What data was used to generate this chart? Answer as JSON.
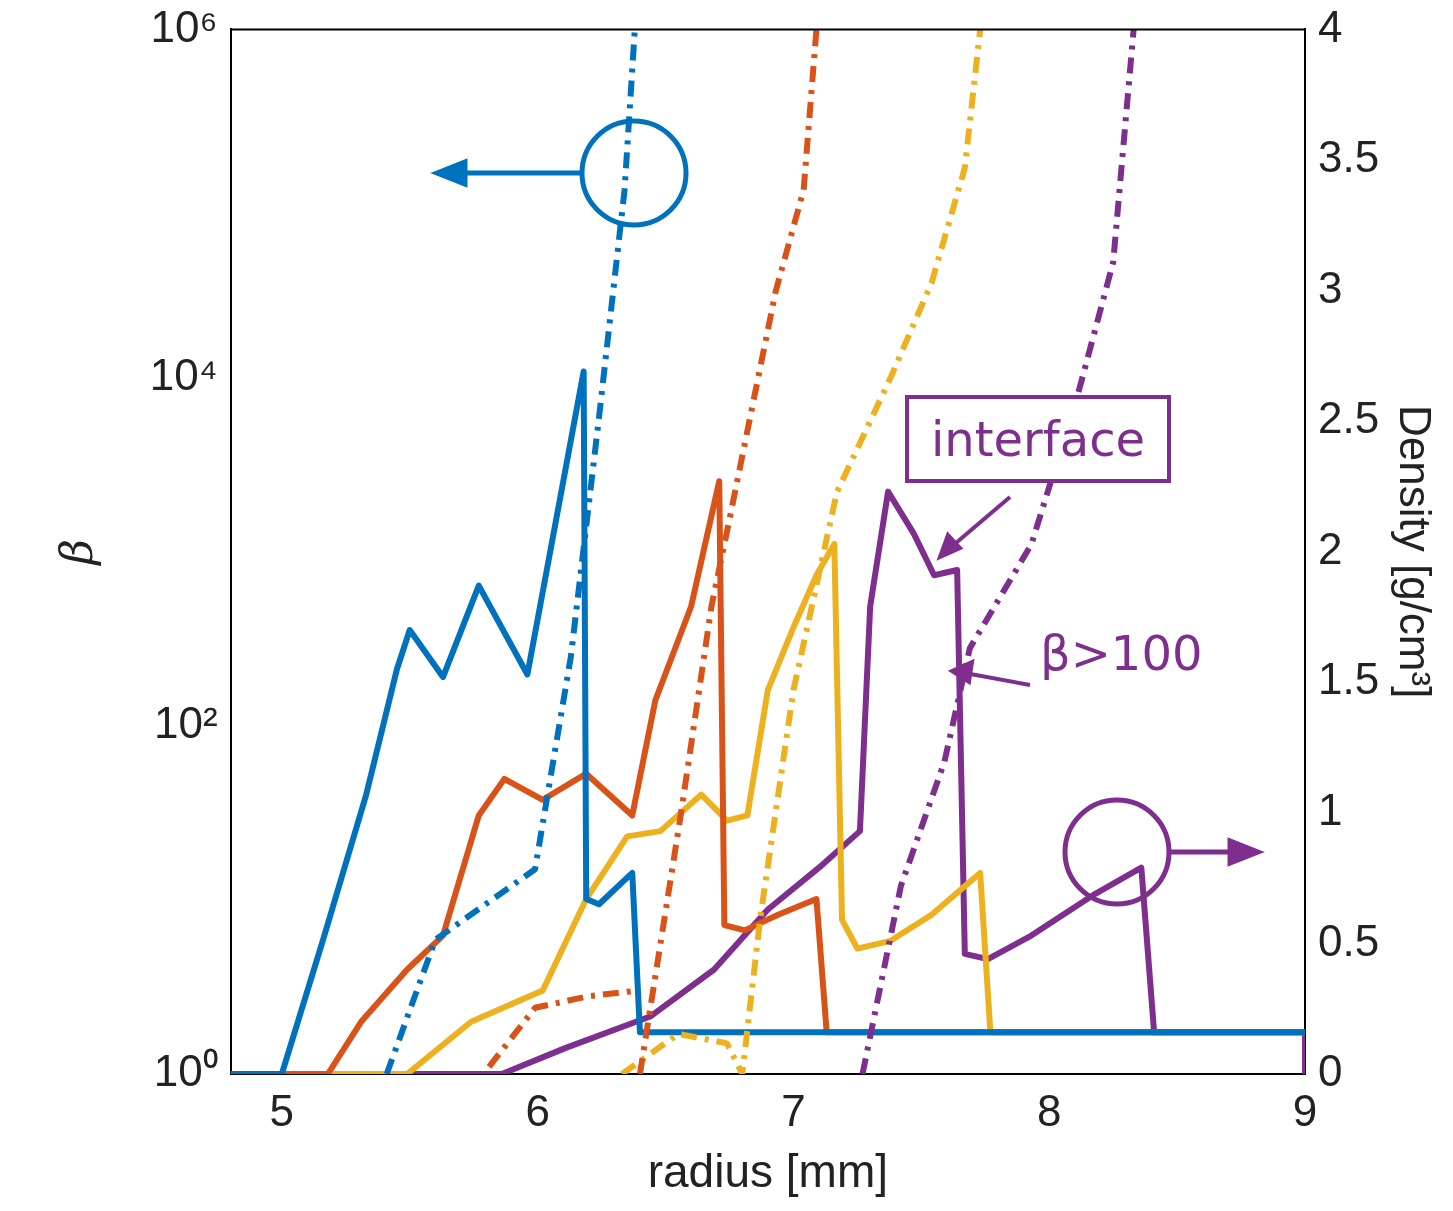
{
  "chart_data": {
    "type": "line",
    "xlabel": "radius [mm]",
    "ylabel": "β",
    "y2label": "Density [g/cm³]",
    "log": "y",
    "grid": false,
    "legend": false,
    "xlim": [
      4.8,
      9
    ],
    "xticks": [
      5,
      6,
      7,
      8,
      9
    ],
    "ylim": [
      1,
      1000000
    ],
    "yticks": [
      {
        "value": 1,
        "label": "10⁰"
      },
      {
        "value": 100,
        "label": "10²"
      },
      {
        "value": 10000,
        "label": "10⁴"
      },
      {
        "value": 1000000,
        "label": "10⁶"
      }
    ],
    "y2lim": [
      0,
      4
    ],
    "y2ticks": [
      0,
      0.5,
      1,
      1.5,
      2,
      2.5,
      3,
      3.5,
      4
    ],
    "annotations": [
      "interface",
      "β>100"
    ],
    "series": [
      {
        "color": "#0072bd",
        "axis": "y",
        "line_style": "dashed",
        "x": [
          5.41,
          5.6,
          5.99,
          6.13,
          6.24,
          6.34,
          6.38
        ],
        "values": [
          1,
          5.9,
          15,
          250,
          5900,
          120000,
          1000000
        ]
      },
      {
        "color": "#d95319",
        "axis": "y",
        "line_style": "dashed",
        "x": [
          5.81,
          5.99,
          6.2,
          6.38,
          6.39,
          6.4,
          6.56,
          6.68,
          6.74,
          6.93,
          7.04,
          7.09
        ],
        "values": [
          1.1,
          2.4,
          2.8,
          3.0,
          null,
          1,
          31,
          490,
          1300,
          31000,
          120000,
          1000000
        ]
      },
      {
        "color": "#edb120",
        "axis": "y",
        "line_style": "dashed",
        "x": [
          6.33,
          6.55,
          6.74,
          6.8,
          6.87,
          7.0,
          7.17,
          7.38,
          7.54,
          7.67,
          7.73
        ],
        "values": [
          1,
          1.7,
          1.5,
          1.0,
          7.8,
          160,
          2200,
          10000,
          35000,
          160000,
          1000000
        ]
      },
      {
        "color": "#7e2f8e",
        "axis": "y",
        "line_style": "dashed",
        "x": [
          7.27,
          7.42,
          7.59,
          7.69,
          7.93,
          8.11,
          8.25,
          8.33
        ],
        "values": [
          1,
          12,
          62,
          280,
          1100,
          7800,
          46000,
          1000000
        ]
      },
      {
        "color": "#0072bd",
        "axis": "y2",
        "line_style": "solid",
        "x": [
          4.8,
          5.0,
          5.16,
          5.33,
          5.45,
          5.5,
          5.63,
          5.77,
          5.96,
          6.07,
          6.18,
          6.19,
          6.24,
          6.37,
          6.4,
          9
        ],
        "values": [
          0,
          0,
          0.51,
          1.07,
          1.55,
          1.7,
          1.52,
          1.87,
          1.53,
          2.11,
          2.69,
          0.67,
          0.65,
          0.77,
          0.16,
          0.16
        ]
      },
      {
        "color": "#d95319",
        "axis": "y2",
        "line_style": "solid",
        "x": [
          4.8,
          5.18,
          5.31,
          5.49,
          5.63,
          5.77,
          5.87,
          6.02,
          6.19,
          6.37,
          6.46,
          6.6,
          6.71,
          6.73,
          6.81,
          6.94,
          7.09,
          7.13,
          9
        ],
        "values": [
          0,
          0,
          0.2,
          0.4,
          0.53,
          0.99,
          1.13,
          1.05,
          1.15,
          0.99,
          1.43,
          1.79,
          2.27,
          0.57,
          0.55,
          0.61,
          0.67,
          0.16,
          0.16
        ]
      },
      {
        "color": "#edb120",
        "axis": "y2",
        "line_style": "solid",
        "x": [
          4.8,
          5.49,
          5.74,
          6.02,
          6.19,
          6.35,
          6.48,
          6.64,
          6.74,
          6.82,
          6.9,
          7.0,
          7.09,
          7.16,
          7.19,
          7.25,
          7.38,
          7.54,
          7.73,
          7.77,
          9
        ],
        "values": [
          0,
          0,
          0.2,
          0.32,
          0.67,
          0.91,
          0.93,
          1.07,
          0.97,
          0.99,
          1.47,
          1.71,
          1.91,
          2.03,
          0.59,
          0.48,
          0.51,
          0.61,
          0.77,
          0.16,
          0.16
        ]
      },
      {
        "color": "#7e2f8e",
        "axis": "y2",
        "line_style": "solid",
        "x": [
          4.8,
          5.86,
          6.11,
          6.44,
          6.69,
          6.9,
          7.1,
          7.26,
          7.3,
          7.37,
          7.47,
          7.55,
          7.64,
          7.67,
          7.76,
          7.93,
          8.18,
          8.36,
          8.41,
          9,
          9
        ],
        "values": [
          0,
          0,
          0.1,
          0.22,
          0.4,
          0.63,
          0.79,
          0.93,
          1.79,
          2.23,
          2.07,
          1.91,
          1.93,
          0.46,
          0.44,
          0.53,
          0.69,
          0.79,
          0.16,
          0.16,
          0
        ]
      }
    ]
  }
}
